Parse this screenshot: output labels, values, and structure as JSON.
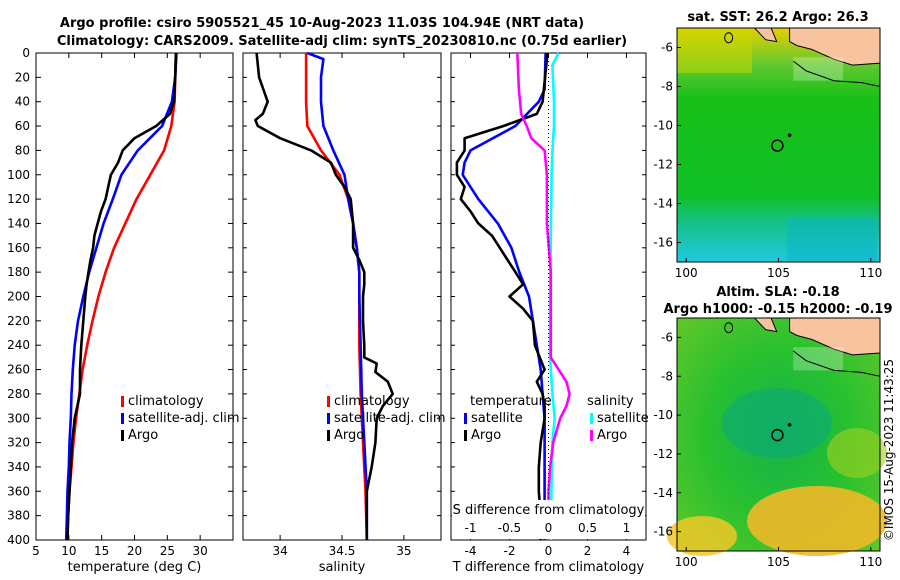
{
  "title_line1": "Argo profile: csiro 5905521_45 10-Aug-2023 11.03S 104.94E (NRT data)",
  "title_line2": "Climatology: CARS2009. Satellite-adj clim: synTS_20230810.nc (0.75d earlier)",
  "footer_stamp": "©IMOS 15-Aug-2023 11:43:25",
  "colors": {
    "climatology": "#ff0000",
    "satellite": "#0000ff",
    "argo": "#000000",
    "salinity_diff": "#00ffff",
    "salinity_argo_diff": "#ff00ff"
  },
  "chart_data": [
    {
      "id": "temperature",
      "type": "line",
      "xlabel": "temperature (deg C)",
      "ylabel": "",
      "xlim": [
        5,
        35
      ],
      "ylim": [
        400,
        0
      ],
      "xticks": [
        "5",
        "10",
        "15",
        "20",
        "25",
        "30"
      ],
      "xtick_values": [
        5,
        10,
        15,
        20,
        25,
        30
      ],
      "yticks": [
        "0",
        "20",
        "40",
        "60",
        "80",
        "100",
        "120",
        "140",
        "160",
        "180",
        "200",
        "220",
        "240",
        "260",
        "280",
        "300",
        "320",
        "340",
        "360",
        "380",
        "400"
      ],
      "ytick_values": [
        0,
        20,
        40,
        60,
        80,
        100,
        120,
        140,
        160,
        180,
        200,
        220,
        240,
        260,
        280,
        300,
        320,
        340,
        360,
        380,
        400
      ],
      "legend": [
        "climatology",
        "satellite-adj. clim",
        "Argo"
      ],
      "series": [
        {
          "name": "climatology",
          "color": "#ff0000",
          "depth": [
            0,
            40,
            60,
            80,
            100,
            120,
            140,
            160,
            180,
            200,
            220,
            240,
            260,
            280,
            300,
            320,
            340,
            360,
            380,
            400
          ],
          "values": [
            26.3,
            26.1,
            25.6,
            24.5,
            22.4,
            20.3,
            18.6,
            16.9,
            15.6,
            14.5,
            13.6,
            12.8,
            12.1,
            11.6,
            11.1,
            10.7,
            10.4,
            10.1,
            9.9,
            9.7
          ]
        },
        {
          "name": "satellite-adj. clim",
          "color": "#0000ff",
          "depth": [
            0,
            20,
            40,
            60,
            80,
            100,
            120,
            140,
            160,
            180,
            200,
            220,
            240,
            260,
            280,
            300,
            320,
            340,
            360,
            380,
            400
          ],
          "values": [
            26.4,
            26.2,
            25.7,
            24.2,
            20.5,
            18.0,
            16.7,
            15.3,
            14.2,
            13.1,
            12.2,
            11.4,
            10.9,
            10.6,
            10.4,
            10.3,
            10.1,
            10.0,
            9.8,
            9.7,
            9.6
          ]
        },
        {
          "name": "Argo",
          "color": "#000000",
          "depth": [
            0,
            20,
            40,
            50,
            60,
            70,
            80,
            90,
            100,
            110,
            120,
            130,
            140,
            150,
            160,
            170,
            180,
            190,
            200,
            220,
            240,
            260,
            280,
            300,
            320,
            340,
            360,
            380,
            400
          ],
          "values": [
            26.3,
            26.2,
            26.0,
            25.4,
            23.3,
            20.0,
            18.2,
            17.5,
            16.4,
            16.0,
            15.6,
            14.9,
            14.4,
            13.9,
            13.7,
            13.3,
            13.0,
            12.7,
            12.5,
            12.2,
            11.9,
            11.7,
            11.7,
            10.9,
            10.5,
            10.3,
            10.1,
            9.9,
            9.8
          ]
        }
      ]
    },
    {
      "id": "salinity",
      "type": "line",
      "xlabel": "salinity",
      "xlim": [
        33.7,
        35.3
      ],
      "ylim": [
        400,
        0
      ],
      "xticks": [
        "34",
        "34.5",
        "35"
      ],
      "xtick_values": [
        34,
        34.5,
        35
      ],
      "legend": [
        "climatology",
        "satellite-adj. clim",
        "Argo"
      ],
      "series": [
        {
          "name": "climatology",
          "color": "#ff0000",
          "depth": [
            0,
            20,
            40,
            60,
            80,
            100,
            120,
            140,
            160,
            180,
            200,
            240,
            280,
            320,
            360,
            400
          ],
          "values": [
            34.21,
            34.21,
            34.21,
            34.22,
            34.33,
            34.48,
            34.55,
            34.59,
            34.62,
            34.64,
            34.64,
            34.64,
            34.65,
            34.67,
            34.69,
            34.7
          ]
        },
        {
          "name": "satellite-adj. clim",
          "color": "#0000ff",
          "depth": [
            0,
            5,
            20,
            40,
            60,
            80,
            100,
            120,
            140,
            160,
            180,
            200,
            240,
            280,
            320,
            360,
            400
          ],
          "values": [
            34.22,
            34.35,
            34.33,
            34.33,
            34.35,
            34.43,
            34.52,
            34.55,
            34.59,
            34.62,
            34.64,
            34.64,
            34.65,
            34.66,
            34.68,
            34.7,
            34.7
          ]
        },
        {
          "name": "Argo",
          "color": "#000000",
          "depth": [
            0,
            20,
            40,
            50,
            55,
            60,
            70,
            80,
            90,
            100,
            110,
            120,
            130,
            140,
            150,
            160,
            170,
            180,
            190,
            200,
            220,
            240,
            250,
            255,
            262,
            270,
            280,
            290,
            300,
            320,
            340,
            360,
            380,
            400
          ],
          "values": [
            33.81,
            33.83,
            33.9,
            33.86,
            33.8,
            33.82,
            34.0,
            34.25,
            34.41,
            34.45,
            34.52,
            34.57,
            34.58,
            34.59,
            34.59,
            34.59,
            34.64,
            34.68,
            34.68,
            34.67,
            34.67,
            34.68,
            34.68,
            34.78,
            34.77,
            34.87,
            34.91,
            34.83,
            34.78,
            34.77,
            34.74,
            34.7,
            34.7,
            34.7
          ]
        }
      ]
    },
    {
      "id": "differences",
      "type": "line",
      "xlabel": "T difference from climatology",
      "xlabel_top": "S difference from climatology",
      "xlim": [
        -5,
        5
      ],
      "ylim": [
        400,
        0
      ],
      "xticks": [
        "-4",
        "-2",
        "0",
        "2",
        "4"
      ],
      "xtick_values": [
        -4,
        -2,
        0,
        2,
        4
      ],
      "xticks_top": [
        "-1",
        "-0.5",
        "0",
        "0.5",
        "1"
      ],
      "xtick_values_top": [
        -1,
        -0.5,
        0,
        0.5,
        1
      ],
      "legend_left_title": "temperature",
      "legend_right_title": "salinity",
      "legend_left": [
        "satellite",
        "Argo"
      ],
      "legend_right": [
        "satellite",
        "Argo"
      ],
      "series": [
        {
          "name": "temperature satellite",
          "color": "#0000ff",
          "depth": [
            0,
            30,
            40,
            60,
            80,
            90,
            100,
            120,
            140,
            160,
            180,
            200,
            220,
            240,
            260,
            280,
            300,
            320,
            340,
            360,
            380,
            400
          ],
          "values": [
            -0.15,
            -0.2,
            -0.5,
            -1.7,
            -4.0,
            -4.3,
            -4.4,
            -3.6,
            -2.6,
            -1.9,
            -1.5,
            -1.0,
            -0.8,
            -0.6,
            -0.4,
            -0.3,
            -0.2,
            -0.2,
            -0.2,
            -0.2,
            -0.2,
            -0.2
          ]
        },
        {
          "name": "temperature Argo",
          "color": "#000000",
          "depth": [
            0,
            40,
            50,
            60,
            70,
            80,
            90,
            100,
            110,
            120,
            130,
            140,
            150,
            160,
            170,
            180,
            190,
            200,
            210,
            220,
            240,
            260,
            270,
            280,
            290,
            300,
            320,
            340,
            360,
            380,
            400
          ],
          "values": [
            -0.05,
            -0.3,
            -0.6,
            -2.3,
            -4.3,
            -4.3,
            -4.7,
            -4.7,
            -4.3,
            -4.5,
            -4.0,
            -3.6,
            -2.9,
            -2.5,
            -2.1,
            -1.7,
            -1.3,
            -2.0,
            -1.3,
            -0.8,
            -0.7,
            -0.2,
            -0.6,
            -0.3,
            -0.2,
            -0.2,
            -0.4,
            -0.5,
            -0.5,
            -0.4,
            -0.4
          ]
        },
        {
          "name": "salinity satellite",
          "color": "#00ffff",
          "depth": [
            0,
            10,
            40,
            60,
            80,
            100,
            150,
            200,
            250,
            280,
            300,
            320,
            350,
            400
          ],
          "values": [
            0.13,
            0.05,
            0.07,
            0.07,
            0.05,
            0.04,
            0.03,
            0.02,
            0.02,
            0.05,
            0.08,
            0.05,
            0.04,
            0.03
          ]
        },
        {
          "name": "salinity Argo",
          "color": "#ff00ff",
          "depth": [
            0,
            30,
            50,
            60,
            70,
            80,
            100,
            120,
            140,
            180,
            200,
            250,
            260,
            270,
            280,
            290,
            300,
            320,
            340,
            360,
            380,
            400
          ],
          "values": [
            -0.4,
            -0.38,
            -0.35,
            -0.28,
            -0.22,
            -0.05,
            -0.02,
            -0.02,
            -0.02,
            0.03,
            0.03,
            0.03,
            0.13,
            0.23,
            0.27,
            0.23,
            0.15,
            0.06,
            0.02,
            0.0,
            0.0,
            0.0
          ]
        }
      ]
    },
    {
      "id": "sst_map",
      "type": "heatmap",
      "title": "sat. SST: 26.2 Argo: 26.3",
      "xlim": [
        99.5,
        110.5
      ],
      "ylim": [
        -17,
        -5
      ],
      "xticks": [
        "100",
        "105",
        "110"
      ],
      "xtick_values": [
        100,
        105,
        110
      ],
      "yticks": [
        "-6",
        "-8",
        "-10",
        "-12",
        "-14",
        "-16"
      ],
      "ytick_values": [
        -6,
        -8,
        -10,
        -12,
        -14,
        -16
      ],
      "float_position": [
        104.94,
        -11.03
      ]
    },
    {
      "id": "sla_map",
      "type": "heatmap",
      "title": "Altim. SLA: -0.18",
      "subtitle": "Argo h1000: -0.15 h2000: -0.19",
      "xlim": [
        99.5,
        110.5
      ],
      "ylim": [
        -17,
        -5
      ],
      "xticks": [
        "100",
        "105",
        "110"
      ],
      "xtick_values": [
        100,
        105,
        110
      ],
      "yticks": [
        "-6",
        "-8",
        "-10",
        "-12",
        "-14",
        "-16"
      ],
      "ytick_values": [
        -6,
        -8,
        -10,
        -12,
        -14,
        -16
      ],
      "float_position": [
        104.94,
        -11.03
      ]
    }
  ]
}
